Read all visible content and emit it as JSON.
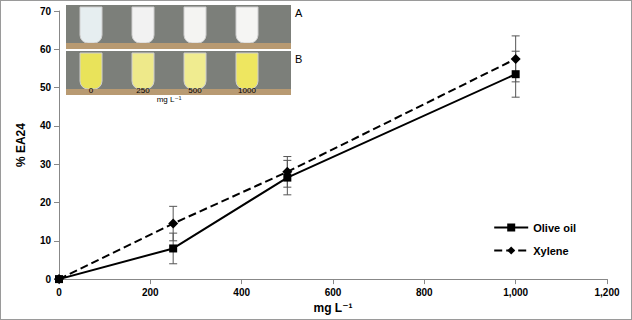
{
  "chart_data": {
    "type": "line",
    "x_label": "mg L⁻¹",
    "y_label": "% EA24",
    "xlim": [
      0,
      1200
    ],
    "xticks": [
      0,
      200,
      400,
      600,
      800,
      1000,
      1200
    ],
    "ylim": [
      0,
      70
    ],
    "yticks": [
      0,
      10,
      20,
      30,
      40,
      50,
      60,
      70
    ],
    "grid": false,
    "legend": "lower right",
    "series": [
      {
        "name": "Olive oil",
        "color": "#000000",
        "marker": "square",
        "line_style": "solid",
        "x": [
          0,
          250,
          500,
          1000
        ],
        "values": [
          0,
          8,
          26.5,
          53.5
        ],
        "errors": [
          0,
          4,
          4.5,
          6
        ]
      },
      {
        "name": "Xylene",
        "color": "#000000",
        "marker": "diamond",
        "line_style": "dashed",
        "x": [
          0,
          250,
          500,
          1000
        ],
        "values": [
          0,
          14.5,
          28,
          57.5
        ],
        "errors": [
          0,
          4.5,
          4,
          6
        ]
      }
    ],
    "inset": {
      "panels": [
        "A",
        "B"
      ],
      "labels": [
        "0",
        "250",
        "500",
        "1000"
      ],
      "unit": "mg L⁻¹"
    }
  }
}
